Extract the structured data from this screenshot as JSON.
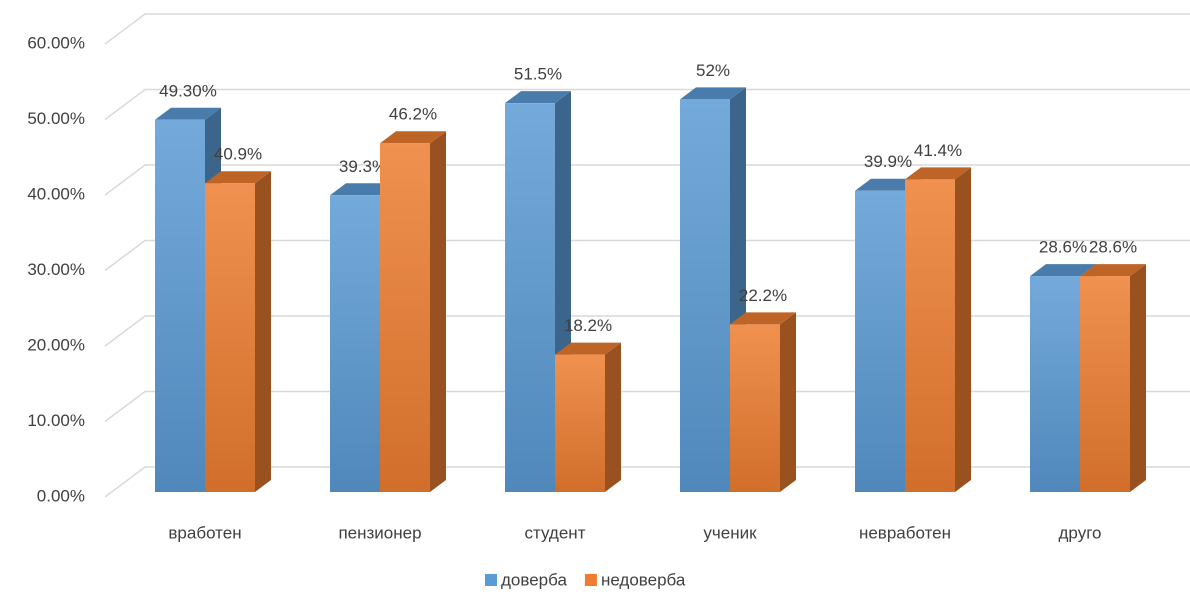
{
  "chart_data": {
    "type": "bar3d",
    "categories": [
      "вработен",
      "пензионер",
      "студент",
      "ученик",
      "невработен",
      "друго"
    ],
    "series": [
      {
        "name": "доверба",
        "color": "#5b9bd5",
        "values": [
          49.3,
          39.3,
          51.5,
          52,
          39.9,
          28.6
        ],
        "value_labels": [
          "49.30%",
          "39.3%",
          "51.5%",
          "52%",
          "39.9%",
          "28.6%"
        ]
      },
      {
        "name": "недоверба",
        "color": "#ed7d31",
        "values": [
          40.9,
          46.2,
          18.2,
          22.2,
          41.4,
          28.6
        ],
        "value_labels": [
          "40.9%",
          "46.2%",
          "18.2%",
          "22.2%",
          "41.4%",
          "28.6%"
        ]
      }
    ],
    "ylim": [
      0,
      60
    ],
    "yticks": [
      {
        "value": 0,
        "label": "0.00%"
      },
      {
        "value": 10,
        "label": "10.00%"
      },
      {
        "value": 20,
        "label": "20.00%"
      },
      {
        "value": 30,
        "label": "30.00%"
      },
      {
        "value": 40,
        "label": "40.00%"
      },
      {
        "value": 50,
        "label": "50.00%"
      },
      {
        "value": 60,
        "label": "60.00%"
      }
    ],
    "grid": true,
    "legend": "bottom"
  }
}
